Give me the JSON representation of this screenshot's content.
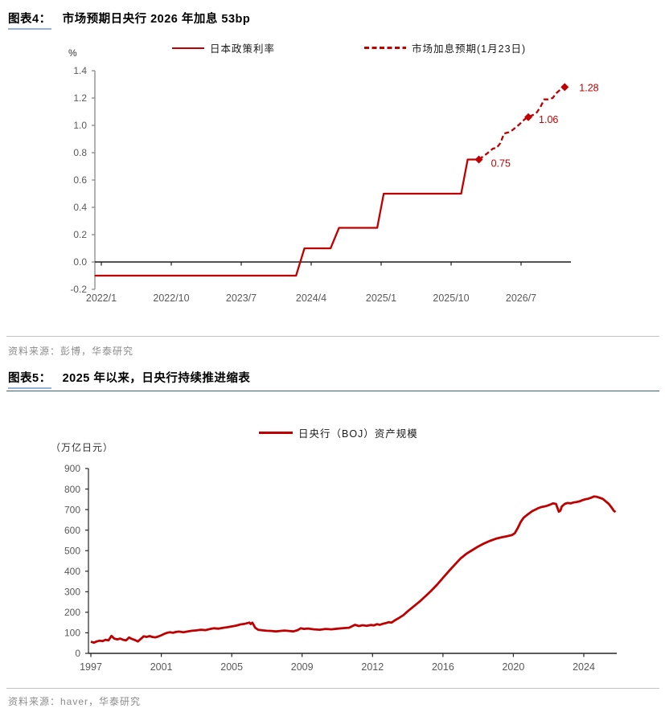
{
  "page": {
    "figure4": {
      "label": "图表4：",
      "title": "市场预期日央行 2026 年加息 53bp",
      "source": "资料来源：彭博，华泰研究"
    },
    "figure5": {
      "label": "图表5：",
      "title": "2025 年以来，日央行持续推进缩表",
      "source": "资料来源：haver，华泰研究"
    }
  },
  "colors": {
    "series_red": "#C00000",
    "axis_label_gray": "#595959",
    "axis_line_gray": "#7F7F7F",
    "zero_line_black": "#1A1A1A",
    "chart2_axis_black": "#262626",
    "title_underline_blue": "#95B3D7",
    "divider_blue": "#35618F",
    "divider_gray": "#C3C3C3",
    "source_gray": "#8C8C8C"
  },
  "chart_data": [
    {
      "type": "line",
      "unit_label": "%",
      "legend": [
        {
          "label": "日本政策利率",
          "style": "solid"
        },
        {
          "label": "市场加息预期(1月23日)",
          "style": "dashed"
        }
      ],
      "x_tick_labels": [
        "2022/1",
        "2022/10",
        "2023/7",
        "2024/4",
        "2025/1",
        "2025/10",
        "2026/7"
      ],
      "x_tick_years": [
        2022.042,
        2022.792,
        2023.542,
        2024.292,
        2025.042,
        2025.792,
        2026.542
      ],
      "ylim": [
        -0.2,
        1.4
      ],
      "y_tick_step": 0.2,
      "grid": false,
      "legend_position": "top",
      "series": [
        {
          "name": "日本政策利率",
          "style": "solid",
          "points": [
            [
              2021.97,
              -0.1
            ],
            [
              2024.13,
              -0.1
            ],
            [
              2024.22,
              0.1
            ],
            [
              2024.5,
              0.1
            ],
            [
              2024.59,
              0.25
            ],
            [
              2025.0,
              0.25
            ],
            [
              2025.07,
              0.5
            ],
            [
              2025.9,
              0.5
            ],
            [
              2025.97,
              0.75
            ],
            [
              2026.09,
              0.75
            ]
          ]
        },
        {
          "name": "市场加息预期(1月23日)",
          "style": "dashed",
          "points": [
            [
              2026.09,
              0.75
            ],
            [
              2026.17,
              0.79
            ],
            [
              2026.24,
              0.83
            ],
            [
              2026.28,
              0.835
            ],
            [
              2026.32,
              0.87
            ],
            [
              2026.36,
              0.94
            ],
            [
              2026.41,
              0.95
            ],
            [
              2026.45,
              0.965
            ],
            [
              2026.52,
              1.005
            ],
            [
              2026.58,
              1.045
            ],
            [
              2026.62,
              1.06
            ],
            [
              2026.67,
              1.076
            ],
            [
              2026.71,
              1.094
            ],
            [
              2026.75,
              1.135
            ],
            [
              2026.79,
              1.19
            ],
            [
              2026.83,
              1.19
            ],
            [
              2026.88,
              1.2
            ],
            [
              2026.92,
              1.235
            ],
            [
              2026.96,
              1.26
            ],
            [
              2027.01,
              1.28
            ]
          ]
        }
      ],
      "markers": [
        {
          "x": 2026.09,
          "value": 0.75,
          "label": "0.75"
        },
        {
          "x": 2026.62,
          "value": 1.06,
          "label": "1.06"
        },
        {
          "x": 2027.01,
          "value": 1.28,
          "label": "1.28"
        }
      ]
    },
    {
      "type": "line",
      "unit_label": "（万亿日元）",
      "legend": [
        {
          "label": "日央行（BOJ）资产规模",
          "style": "solid"
        }
      ],
      "x_tick_labels": [
        "1997",
        "2001",
        "2005",
        "2009",
        "2012",
        "2016",
        "2020",
        "2024"
      ],
      "x_tick_years": [
        1997,
        2001,
        2005,
        2009,
        2012,
        2016,
        2020,
        2024
      ],
      "ylim": [
        0,
        900
      ],
      "y_tick_step": 100,
      "grid": false,
      "legend_position": "top",
      "series": [
        {
          "name": "日央行（BOJ）资产规模",
          "style": "solid",
          "points": [
            [
              1997.0,
              57
            ],
            [
              1997.17,
              52
            ],
            [
              1997.33,
              58
            ],
            [
              1997.5,
              62
            ],
            [
              1997.67,
              60
            ],
            [
              1997.83,
              66
            ],
            [
              1998.0,
              63
            ],
            [
              1998.17,
              85
            ],
            [
              1998.33,
              72
            ],
            [
              1998.5,
              68
            ],
            [
              1998.67,
              72
            ],
            [
              1998.83,
              66
            ],
            [
              1999.0,
              63
            ],
            [
              1999.17,
              77
            ],
            [
              1999.33,
              70
            ],
            [
              1999.5,
              65
            ],
            [
              1999.67,
              58
            ],
            [
              1999.83,
              70
            ],
            [
              2000.0,
              83
            ],
            [
              2000.17,
              80
            ],
            [
              2000.33,
              84
            ],
            [
              2000.5,
              80
            ],
            [
              2000.67,
              78
            ],
            [
              2000.83,
              82
            ],
            [
              2001.0,
              88
            ],
            [
              2001.17,
              95
            ],
            [
              2001.33,
              100
            ],
            [
              2001.5,
              103
            ],
            [
              2001.67,
              100
            ],
            [
              2001.83,
              104
            ],
            [
              2002.0,
              106
            ],
            [
              2002.25,
              103
            ],
            [
              2002.5,
              107
            ],
            [
              2002.75,
              110
            ],
            [
              2003.0,
              112
            ],
            [
              2003.25,
              115
            ],
            [
              2003.5,
              113
            ],
            [
              2003.75,
              118
            ],
            [
              2004.0,
              122
            ],
            [
              2004.25,
              120
            ],
            [
              2004.5,
              124
            ],
            [
              2004.75,
              127
            ],
            [
              2005.0,
              131
            ],
            [
              2005.25,
              135
            ],
            [
              2005.5,
              141
            ],
            [
              2005.75,
              144
            ],
            [
              2006.0,
              150
            ],
            [
              2006.08,
              143
            ],
            [
              2006.17,
              149
            ],
            [
              2006.25,
              138
            ],
            [
              2006.33,
              125
            ],
            [
              2006.5,
              115
            ],
            [
              2006.75,
              112
            ],
            [
              2007.0,
              110
            ],
            [
              2007.25,
              109
            ],
            [
              2007.5,
              107
            ],
            [
              2007.75,
              109
            ],
            [
              2008.0,
              111
            ],
            [
              2008.25,
              109
            ],
            [
              2008.5,
              107
            ],
            [
              2008.75,
              113
            ],
            [
              2008.92,
              122
            ],
            [
              2009.08,
              119
            ],
            [
              2009.25,
              121
            ],
            [
              2009.5,
              117
            ],
            [
              2009.75,
              115
            ],
            [
              2010.0,
              119
            ],
            [
              2010.25,
              117
            ],
            [
              2010.5,
              120
            ],
            [
              2010.75,
              123
            ],
            [
              2011.0,
              125
            ],
            [
              2011.25,
              139
            ],
            [
              2011.42,
              133
            ],
            [
              2011.58,
              137
            ],
            [
              2011.75,
              134
            ],
            [
              2011.92,
              138
            ],
            [
              2012.08,
              136
            ],
            [
              2012.25,
              142
            ],
            [
              2012.42,
              139
            ],
            [
              2012.58,
              144
            ],
            [
              2012.75,
              147
            ],
            [
              2012.92,
              152
            ],
            [
              2013.08,
              150
            ],
            [
              2013.25,
              160
            ],
            [
              2013.5,
              172
            ],
            [
              2013.75,
              186
            ],
            [
              2014.0,
              205
            ],
            [
              2014.33,
              228
            ],
            [
              2014.67,
              252
            ],
            [
              2015.0,
              278
            ],
            [
              2015.33,
              305
            ],
            [
              2015.67,
              335
            ],
            [
              2016.0,
              368
            ],
            [
              2016.33,
              400
            ],
            [
              2016.67,
              432
            ],
            [
              2017.0,
              462
            ],
            [
              2017.33,
              485
            ],
            [
              2017.67,
              503
            ],
            [
              2018.0,
              520
            ],
            [
              2018.33,
              535
            ],
            [
              2018.67,
              548
            ],
            [
              2019.0,
              558
            ],
            [
              2019.33,
              565
            ],
            [
              2019.67,
              571
            ],
            [
              2019.92,
              576
            ],
            [
              2020.08,
              585
            ],
            [
              2020.25,
              610
            ],
            [
              2020.42,
              640
            ],
            [
              2020.58,
              660
            ],
            [
              2020.75,
              672
            ],
            [
              2020.92,
              683
            ],
            [
              2021.08,
              693
            ],
            [
              2021.25,
              700
            ],
            [
              2021.42,
              707
            ],
            [
              2021.58,
              712
            ],
            [
              2021.75,
              715
            ],
            [
              2021.92,
              719
            ],
            [
              2022.08,
              724
            ],
            [
              2022.25,
              730
            ],
            [
              2022.42,
              728
            ],
            [
              2022.5,
              710
            ],
            [
              2022.58,
              690
            ],
            [
              2022.67,
              695
            ],
            [
              2022.75,
              715
            ],
            [
              2022.92,
              728
            ],
            [
              2023.08,
              732
            ],
            [
              2023.25,
              730
            ],
            [
              2023.42,
              735
            ],
            [
              2023.58,
              737
            ],
            [
              2023.75,
              740
            ],
            [
              2023.92,
              746
            ],
            [
              2024.08,
              750
            ],
            [
              2024.25,
              753
            ],
            [
              2024.42,
              758
            ],
            [
              2024.58,
              764
            ],
            [
              2024.75,
              762
            ],
            [
              2024.92,
              757
            ],
            [
              2025.08,
              752
            ],
            [
              2025.25,
              740
            ],
            [
              2025.42,
              728
            ],
            [
              2025.58,
              710
            ],
            [
              2025.7,
              695
            ],
            [
              2025.8,
              688
            ]
          ]
        }
      ]
    }
  ]
}
